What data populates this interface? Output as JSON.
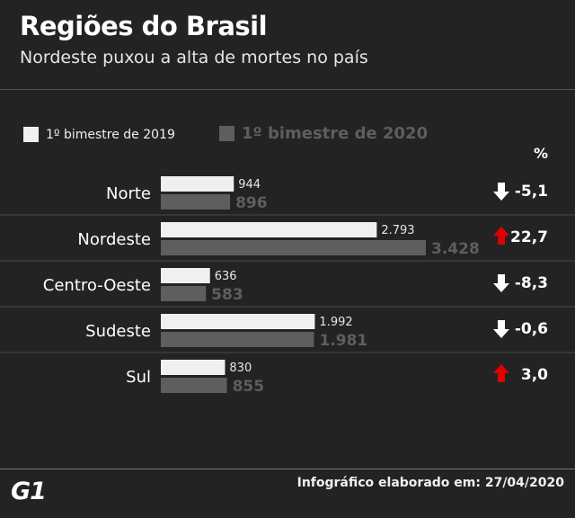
{
  "header": {
    "title": "Regiões do Brasil",
    "subtitle": "Nordeste puxou a alta de mortes no país"
  },
  "legend": {
    "series_2019": "1º bimestre de 2019",
    "series_2020": "1º bimestre de 2020"
  },
  "pct_header": "%",
  "footer": {
    "logo": "G1",
    "text": "Infográfico elaborado em: 27/04/2020"
  },
  "colors": {
    "background": "#232323",
    "bar_2019": "#f0f0f0",
    "bar_2020": "#5e5e5e",
    "arrow_up": "#e00000",
    "arrow_down": "#ffffff"
  },
  "chart_data": {
    "type": "bar",
    "orientation": "horizontal",
    "categories": [
      "Norte",
      "Nordeste",
      "Centro-Oeste",
      "Sudeste",
      "Sul"
    ],
    "series": [
      {
        "name": "1º bimestre de 2019",
        "values": [
          944,
          2793,
          636,
          1992,
          830
        ],
        "labels": [
          "944",
          "2.793",
          "636",
          "1.992",
          "830"
        ]
      },
      {
        "name": "1º bimestre de 2020",
        "values": [
          896,
          3428,
          583,
          1981,
          855
        ],
        "labels": [
          "896",
          "3.428",
          "583",
          "1.981",
          "855"
        ]
      }
    ],
    "changes": [
      {
        "value": -5.1,
        "label": "-5,1",
        "direction": "down"
      },
      {
        "value": 22.7,
        "label": "22,7",
        "direction": "up"
      },
      {
        "value": -8.3,
        "label": "-8,3",
        "direction": "down"
      },
      {
        "value": -0.6,
        "label": "-0,6",
        "direction": "down"
      },
      {
        "value": 3.0,
        "label": "3,0",
        "direction": "up"
      }
    ],
    "xlim": [
      0,
      3428
    ]
  }
}
